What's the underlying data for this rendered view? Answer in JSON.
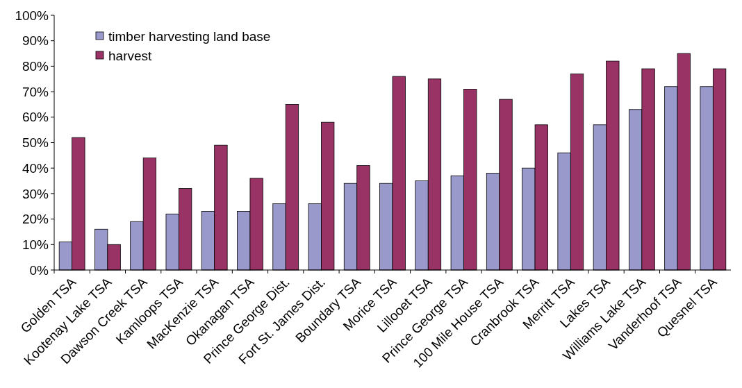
{
  "chart_data": {
    "type": "bar",
    "categories": [
      "Golden TSA",
      "Kootenay Lake TSA",
      "Dawson Creek TSA",
      "Kamloops TSA",
      "MacKenzie TSA",
      "Okanagan TSA",
      "Prince George Dist.",
      "Fort St. James Dist.",
      "Boundary TSA",
      "Morice TSA",
      "Lillooet TSA",
      "Prince George TSA",
      "100 Mile House TSA",
      "Cranbrook TSA",
      "Merritt TSA",
      "Lakes TSA",
      "Williams Lake TSA",
      "Vanderhoof TSA",
      "Quesnel TSA"
    ],
    "series": [
      {
        "name": "timber harvesting land base",
        "color": "#9999cc",
        "values": [
          11,
          16,
          19,
          22,
          23,
          23,
          26,
          26,
          34,
          34,
          35,
          37,
          38,
          40,
          46,
          57,
          63,
          72,
          72
        ]
      },
      {
        "name": "harvest",
        "color": "#993366",
        "values": [
          52,
          10,
          44,
          32,
          49,
          36,
          65,
          58,
          41,
          76,
          75,
          71,
          67,
          57,
          77,
          82,
          79,
          85,
          79
        ]
      }
    ],
    "ylim": [
      0,
      100
    ],
    "yticks": [
      {
        "value": 0,
        "label": "0%"
      },
      {
        "value": 10,
        "label": "10%"
      },
      {
        "value": 20,
        "label": "20%"
      },
      {
        "value": 30,
        "label": "30%"
      },
      {
        "value": 40,
        "label": "40%"
      },
      {
        "value": 50,
        "label": "50%"
      },
      {
        "value": 60,
        "label": "60%"
      },
      {
        "value": 70,
        "label": "70%"
      },
      {
        "value": 80,
        "label": "80%"
      },
      {
        "value": 90,
        "label": "90%"
      },
      {
        "value": 100,
        "label": "100%"
      }
    ],
    "grid": false,
    "legend": "top left"
  }
}
